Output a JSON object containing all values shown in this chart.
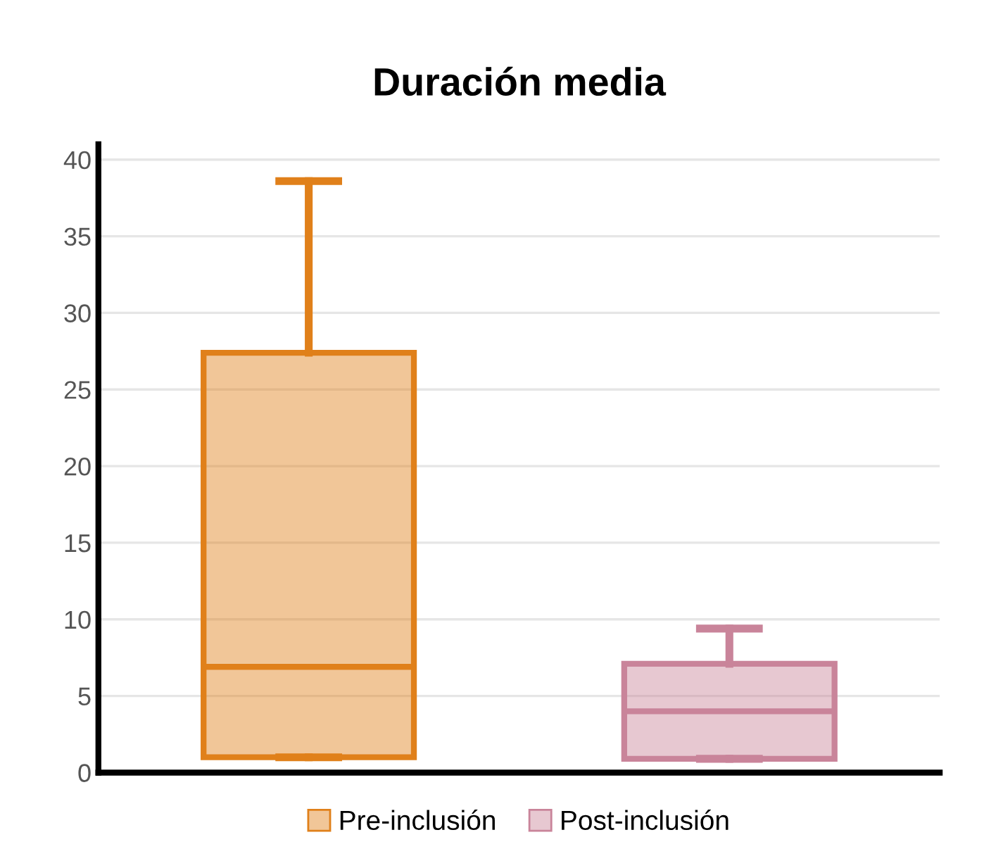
{
  "chart_data": {
    "type": "box",
    "title": "Duración media",
    "categories": [
      null,
      null
    ],
    "series": [
      {
        "name": "Pre-inclusión",
        "color": "#e0801a",
        "boxes": [
          {
            "low": 1,
            "q1": 1,
            "median": 6.9,
            "q3": 27.4,
            "high": 38.6
          },
          null
        ]
      },
      {
        "name": "Post-inclusión",
        "color": "#c9849a",
        "boxes": [
          null,
          {
            "low": 0.9,
            "q1": 0.9,
            "median": 4.0,
            "q3": 7.1,
            "high": 9.4
          }
        ]
      }
    ],
    "ylim": [
      0,
      41
    ],
    "yticks": [
      0,
      5,
      10,
      15,
      20,
      25,
      30,
      35,
      40
    ],
    "grid": "y",
    "legend": "bottom"
  }
}
